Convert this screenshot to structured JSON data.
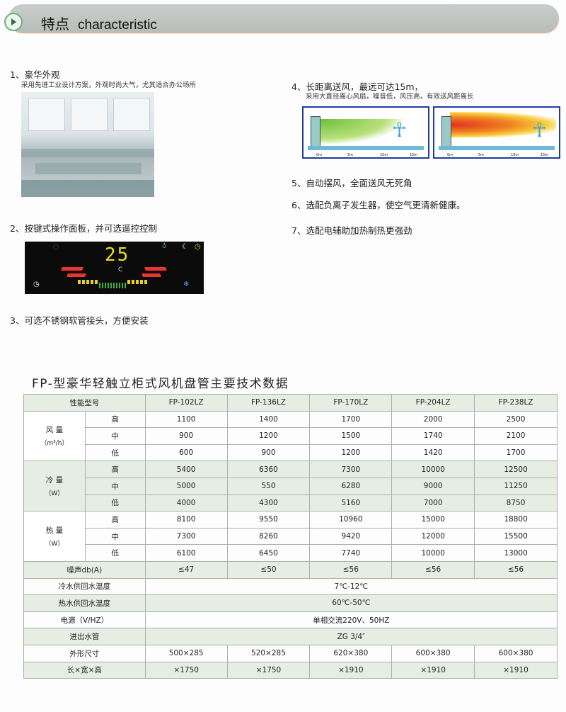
{
  "header": {
    "title_cn": "特点",
    "title_en": "characteristic"
  },
  "features": [
    {
      "label": "1、豪华外观",
      "desc": "采用先进工业设计方案，外观时尚大气，尤其适合办公场所"
    },
    {
      "label": "2、按键式操作面板，并可选遥控控制"
    },
    {
      "label": "3、可选不锈钢软管接头，方便安装"
    },
    {
      "label": "4、长距离送风，最远可达15m，",
      "desc": "采用大直径离心风扇，噪音低，风压高，有效送风距离长"
    },
    {
      "label": "5、自动摆风，全面送风无死角"
    },
    {
      "label": "6、选配负离子发生器，使空气更清新健康。"
    },
    {
      "label": "7、选配电辅助加热制热更强劲"
    }
  ],
  "panel": {
    "temperature": "25",
    "unit": "C"
  },
  "diagram": {
    "ticks": [
      "0m",
      "5m",
      "10m",
      "15m"
    ]
  },
  "table": {
    "title": "FP-型豪华轻触立柜式风机盘管主要技术数据",
    "header_label": "性能型号",
    "models": [
      "FP-102LZ",
      "FP-136LZ",
      "FP-170LZ",
      "FP-204LZ",
      "FP-238LZ"
    ],
    "groups": [
      {
        "name": "风 量",
        "unit": "（m³/h）",
        "rows": [
          {
            "level": "高",
            "values": [
              "1100",
              "1400",
              "1700",
              "2000",
              "2500"
            ]
          },
          {
            "level": "中",
            "values": [
              "900",
              "1200",
              "1500",
              "1740",
              "2100"
            ]
          },
          {
            "level": "低",
            "values": [
              "600",
              "900",
              "1200",
              "1420",
              "1700"
            ]
          }
        ]
      },
      {
        "name": "冷 量",
        "unit": "（W）",
        "rows": [
          {
            "level": "高",
            "values": [
              "5400",
              "6360",
              "7300",
              "10000",
              "12500"
            ]
          },
          {
            "level": "中",
            "values": [
              "5000",
              "550",
              "6280",
              "9000",
              "11250"
            ]
          },
          {
            "level": "低",
            "values": [
              "4000",
              "4300",
              "5160",
              "7000",
              "8750"
            ]
          }
        ]
      },
      {
        "name": "热 量",
        "unit": "（W）",
        "rows": [
          {
            "level": "高",
            "values": [
              "8100",
              "9550",
              "10960",
              "15000",
              "18800"
            ]
          },
          {
            "level": "中",
            "values": [
              "7300",
              "8260",
              "9420",
              "12000",
              "15500"
            ]
          },
          {
            "level": "低",
            "values": [
              "6100",
              "6450",
              "7740",
              "10000",
              "13000"
            ]
          }
        ]
      }
    ],
    "rows": [
      {
        "label": "噪声db(A)",
        "values": [
          "≤47",
          "≤50",
          "≤56",
          "≤56",
          "≤56"
        ]
      },
      {
        "label": "冷水供回水温度",
        "merged": "7℃-12℃"
      },
      {
        "label": "热水供回水温度",
        "merged": "60℃-50℃"
      },
      {
        "label": "电源（V/HZ）",
        "merged": "单相交流220V、50HZ"
      },
      {
        "label": "进出水管",
        "merged": "ZG 3/4″"
      },
      {
        "label": "外形尺寸",
        "values": [
          "500×285",
          "520×285",
          "620×380",
          "600×380",
          "600×380"
        ]
      },
      {
        "label": "长×宽×高",
        "values": [
          "×1750",
          "×1750",
          "×1910",
          "×1910",
          "×1910"
        ]
      }
    ]
  }
}
